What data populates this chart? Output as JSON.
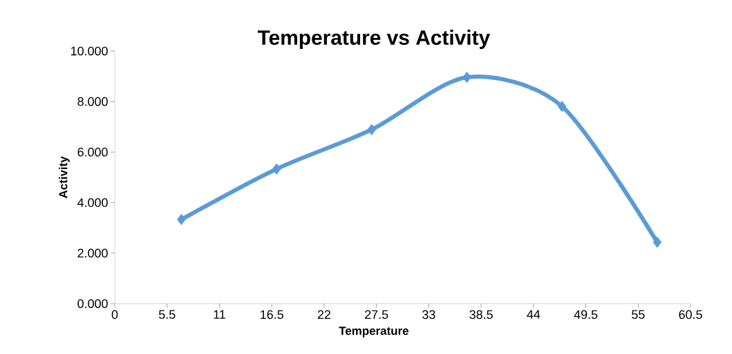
{
  "chart_data": {
    "type": "line",
    "title": "Temperature vs  Activity",
    "xlabel": "Temperature",
    "ylabel": "Activity",
    "x": [
      7,
      17,
      27,
      37,
      47,
      57
    ],
    "series": [
      {
        "color": "#5b9bd5",
        "values": [
          3.33,
          5.33,
          6.89,
          8.96,
          7.81,
          2.43
        ]
      }
    ],
    "xlim": [
      0,
      60.5
    ],
    "xticks": [
      0,
      5.5,
      11,
      16.5,
      22,
      27.5,
      33,
      38.5,
      44,
      49.5,
      55,
      60.5
    ],
    "ylim": [
      0,
      10
    ],
    "yticks": [
      {
        "value": 0,
        "label": "0.000"
      },
      {
        "value": 2,
        "label": "2.000"
      },
      {
        "value": 4,
        "label": "4.000"
      },
      {
        "value": 6,
        "label": "6.000"
      },
      {
        "value": 8,
        "label": "8.000"
      },
      {
        "value": 10,
        "label": "10.000"
      }
    ],
    "marker": "diamond",
    "line_style": "solid",
    "grid": false,
    "legend": false
  }
}
